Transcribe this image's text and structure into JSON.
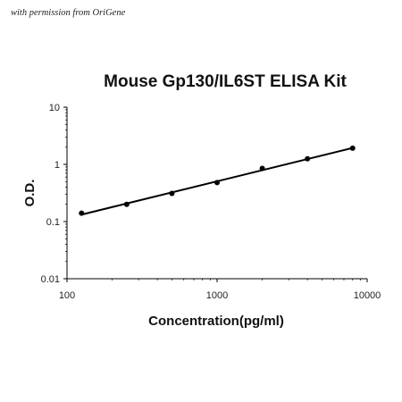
{
  "watermark": "with permission from OriGene",
  "chart_data": {
    "type": "scatter",
    "title": "Mouse Gp130/IL6ST ELISA Kit",
    "xlabel": "Concentration(pg/ml)",
    "ylabel": "O.D.",
    "xscale": "log",
    "yscale": "log",
    "xlim": [
      100,
      10000
    ],
    "ylim": [
      0.01,
      10
    ],
    "xticks": [
      "100",
      "1000",
      "10000"
    ],
    "yticks": [
      "10",
      "1",
      "0.1",
      "0.01"
    ],
    "grid": false,
    "legend": "none",
    "trendline": "power fit line",
    "series": [
      {
        "x": [
          125,
          250,
          500,
          1000,
          2000,
          4000,
          8000
        ],
        "y": [
          0.14,
          0.2,
          0.31,
          0.48,
          0.85,
          1.25,
          1.92
        ]
      }
    ],
    "colors": {
      "marker": "#000000",
      "line": "#000000"
    }
  }
}
